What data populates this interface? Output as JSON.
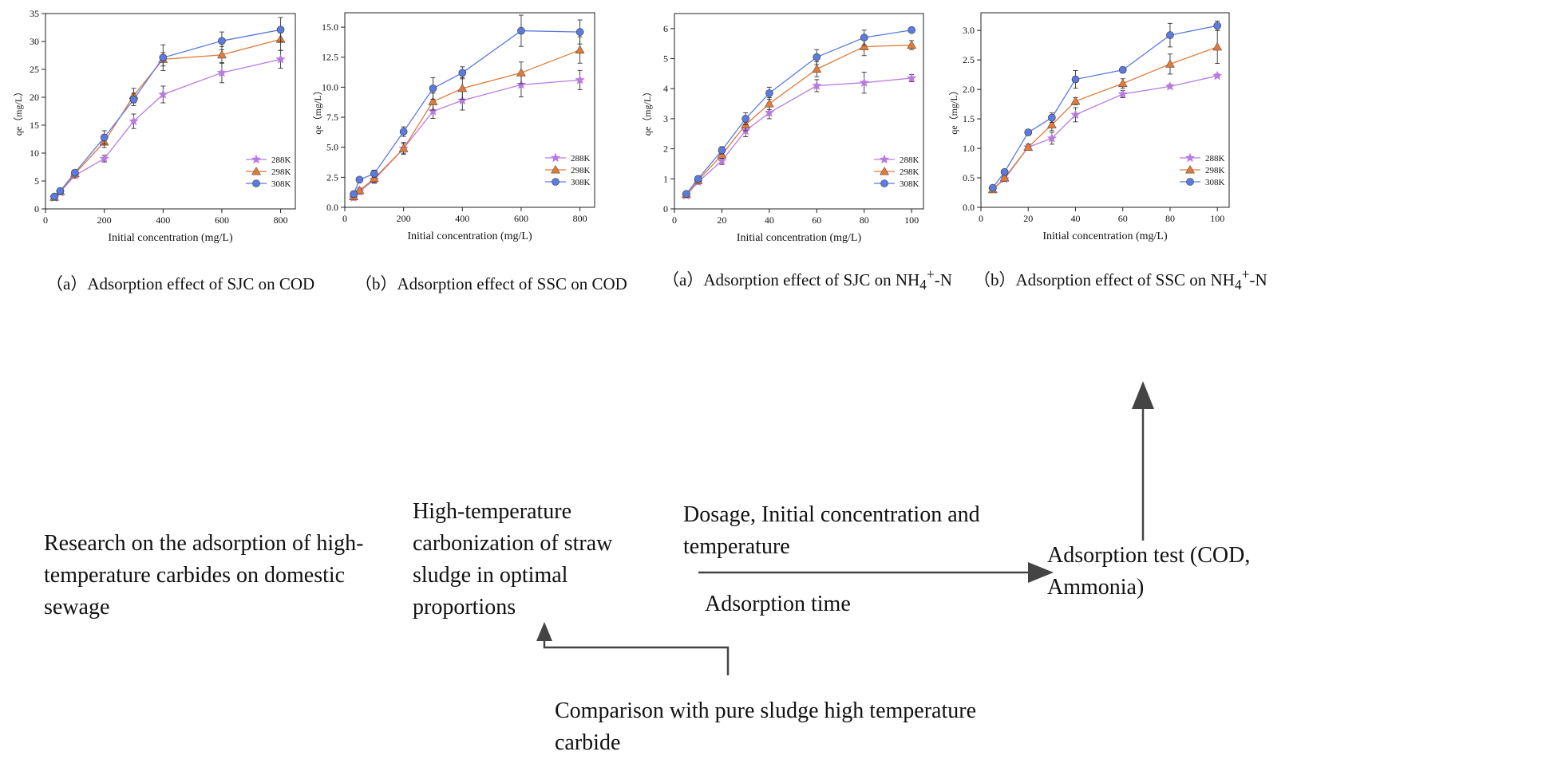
{
  "chart_data": [
    {
      "type": "line",
      "title": "（a）Adsorption effect of SJC on COD",
      "xlabel": "Initial concentration (mg/L)",
      "ylabel": "qe（mg/L）",
      "xlim": [
        0,
        850
      ],
      "ylim": [
        0,
        35
      ],
      "xticks": [
        0,
        200,
        400,
        600,
        800
      ],
      "yticks": [
        0,
        5,
        10,
        15,
        20,
        25,
        30,
        35
      ],
      "ytick_labels": [
        "0",
        "5",
        "10",
        "15",
        "20",
        "25",
        "30",
        "35"
      ],
      "legend_position": "bottom-right",
      "x": [
        30,
        50,
        100,
        200,
        300,
        400,
        600,
        800
      ],
      "series": [
        {
          "name": "288K",
          "color": "#b97be0",
          "marker": "star",
          "values": [
            2.0,
            3.0,
            6.0,
            9.0,
            15.7,
            20.5,
            24.4,
            26.8
          ],
          "errors": [
            0.4,
            0.4,
            0.5,
            0.6,
            1.3,
            1.5,
            1.8,
            1.6
          ]
        },
        {
          "name": "298K",
          "color": "#e07b3c",
          "marker": "triangle",
          "values": [
            2.1,
            3.1,
            6.3,
            12.0,
            20.3,
            26.8,
            27.6,
            30.4
          ],
          "errors": [
            0.4,
            0.4,
            0.5,
            1.0,
            1.3,
            1.2,
            1.5,
            2.0
          ]
        },
        {
          "name": "308K",
          "color": "#5b7be0",
          "marker": "circle",
          "values": [
            2.2,
            3.2,
            6.5,
            12.8,
            19.6,
            27.1,
            30.1,
            32.1
          ],
          "errors": [
            0.4,
            0.4,
            0.5,
            1.2,
            1.1,
            2.3,
            1.6,
            2.2
          ]
        }
      ]
    },
    {
      "type": "line",
      "title": "（b）Adsorption effect of SSC on COD",
      "xlabel": "Initial concentration (mg/L)",
      "ylabel": "qe（mg/L）",
      "xlim": [
        0,
        850
      ],
      "ylim": [
        0,
        16.2
      ],
      "xticks": [
        0,
        200,
        400,
        600,
        800
      ],
      "yticks": [
        0,
        2.5,
        5,
        7.5,
        10,
        12.5,
        15
      ],
      "ytick_labels": [
        "0.0",
        "2.5",
        "5.0",
        "7.5",
        "10.0",
        "12.5",
        "15.0"
      ],
      "legend_position": "bottom-right",
      "x": [
        30,
        50,
        100,
        200,
        300,
        400,
        600,
        800
      ],
      "series": [
        {
          "name": "288K",
          "color": "#b97be0",
          "marker": "star",
          "values": [
            0.8,
            1.3,
            2.3,
            4.9,
            8.0,
            8.9,
            10.2,
            10.6
          ],
          "errors": [
            0.2,
            0.2,
            0.3,
            0.4,
            0.6,
            0.8,
            1.0,
            0.8
          ]
        },
        {
          "name": "298K",
          "color": "#e07b3c",
          "marker": "triangle",
          "values": [
            0.9,
            1.4,
            2.4,
            4.9,
            8.8,
            9.9,
            11.2,
            13.1
          ],
          "errors": [
            0.2,
            0.2,
            0.3,
            0.5,
            0.7,
            0.9,
            0.9,
            1.1
          ]
        },
        {
          "name": "308K",
          "color": "#5b7be0",
          "marker": "circle",
          "values": [
            1.1,
            2.3,
            2.8,
            6.3,
            9.9,
            11.2,
            14.7,
            14.6
          ],
          "errors": [
            0.2,
            0.2,
            0.3,
            0.4,
            0.9,
            0.5,
            1.3,
            1.0
          ]
        }
      ]
    },
    {
      "type": "line",
      "title": "（a）Adsorption effect of SJC on NH4+-N",
      "title_html": "（a）Adsorption effect of SJC on NH<sub>4</sub><sup>+</sup>-N",
      "xlabel": "Initial concentration (mg/L)",
      "ylabel": "qe（mg/L）",
      "xlim": [
        0,
        105
      ],
      "ylim": [
        0,
        6.5
      ],
      "xticks": [
        0,
        20,
        40,
        60,
        80,
        100
      ],
      "yticks": [
        0,
        1,
        2,
        3,
        4,
        5,
        6
      ],
      "ytick_labels": [
        "0",
        "1",
        "2",
        "3",
        "4",
        "5",
        "6"
      ],
      "legend_position": "bottom-right",
      "x": [
        5,
        10,
        20,
        30,
        40,
        60,
        80,
        100
      ],
      "series": [
        {
          "name": "288K",
          "color": "#b97be0",
          "marker": "star",
          "values": [
            0.45,
            0.9,
            1.6,
            2.6,
            3.2,
            4.1,
            4.2,
            4.35
          ],
          "errors": [
            0.05,
            0.08,
            0.12,
            0.2,
            0.2,
            0.2,
            0.35,
            0.12
          ]
        },
        {
          "name": "298K",
          "color": "#e07b3c",
          "marker": "triangle",
          "values": [
            0.48,
            0.95,
            1.8,
            2.8,
            3.5,
            4.65,
            5.4,
            5.45
          ],
          "errors": [
            0.05,
            0.08,
            0.12,
            0.2,
            0.2,
            0.25,
            0.3,
            0.15
          ]
        },
        {
          "name": "308K",
          "color": "#5b7be0",
          "marker": "circle",
          "values": [
            0.5,
            1.0,
            1.95,
            3.0,
            3.85,
            5.05,
            5.7,
            5.95
          ],
          "errors": [
            0.05,
            0.08,
            0.12,
            0.2,
            0.2,
            0.25,
            0.25,
            0.05
          ]
        }
      ]
    },
    {
      "type": "line",
      "title": "（b）Adsorption effect of SSC on NH4+-N",
      "title_html": "（b）Adsorption effect of SSC on NH<sub>4</sub><sup>+</sup>-N",
      "xlabel": "Initial concentration (mg/L)",
      "ylabel": "qe（mg/L）",
      "xlim": [
        0,
        105
      ],
      "ylim": [
        0,
        3.3
      ],
      "xticks": [
        0,
        20,
        40,
        60,
        80,
        100
      ],
      "yticks": [
        0,
        0.5,
        1,
        1.5,
        2,
        2.5,
        3
      ],
      "ytick_labels": [
        "0.0",
        "0.5",
        "1.0",
        "1.5",
        "2.0",
        "2.5",
        "3.0"
      ],
      "legend_position": "bottom-right",
      "x": [
        5,
        10,
        20,
        30,
        40,
        60,
        80,
        100
      ],
      "series": [
        {
          "name": "288K",
          "color": "#b97be0",
          "marker": "star",
          "values": [
            0.3,
            0.48,
            1.02,
            1.17,
            1.57,
            1.92,
            2.05,
            2.23
          ],
          "errors": [
            0.03,
            0.04,
            0.05,
            0.1,
            0.12,
            0.06,
            0.03,
            0.03
          ]
        },
        {
          "name": "298K",
          "color": "#e07b3c",
          "marker": "triangle",
          "values": [
            0.3,
            0.5,
            1.02,
            1.4,
            1.8,
            2.1,
            2.43,
            2.72
          ],
          "errors": [
            0.03,
            0.04,
            0.05,
            0.1,
            0.06,
            0.08,
            0.17,
            0.28
          ]
        },
        {
          "name": "308K",
          "color": "#5b7be0",
          "marker": "circle",
          "values": [
            0.33,
            0.6,
            1.27,
            1.52,
            2.17,
            2.33,
            2.92,
            3.08
          ],
          "errors": [
            0.03,
            0.04,
            0.05,
            0.08,
            0.15,
            0.05,
            0.2,
            0.08
          ]
        }
      ]
    }
  ],
  "flow": {
    "research": "Research on the adsorption of high-temperature carbides on domestic sewage",
    "carbonization": "High-temperature carbonization of straw sludge in optimal proportions",
    "dosage": "Dosage, Initial concentration and temperature",
    "time": "Adsorption time",
    "test": "Adsorption test (COD, Ammonia)",
    "comparison": "Comparison with pure sludge high temperature carbide"
  }
}
